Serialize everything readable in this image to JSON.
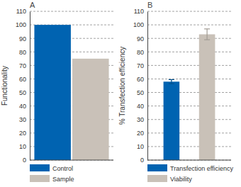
{
  "chart_data": [
    {
      "type": "bar",
      "title": "A",
      "ylabel": "Functionality",
      "categories": [
        null
      ],
      "series": [
        {
          "name": "Control",
          "color": "#0063b1",
          "values": [
            100
          ]
        },
        {
          "name": "Sample",
          "color": "#c9c1b8",
          "values": [
            75
          ]
        }
      ],
      "ylim": [
        0,
        110
      ],
      "yticks": [
        0,
        10,
        20,
        30,
        40,
        50,
        60,
        70,
        80,
        90,
        100,
        110
      ],
      "grid": true,
      "legend": "bottom"
    },
    {
      "type": "bar",
      "title": "B",
      "ylabel": "% Transfection efficiency",
      "categories": [
        null
      ],
      "series": [
        {
          "name": "Transfection efficiency",
          "color": "#0063b1",
          "values": [
            58
          ],
          "errors": [
            1.5
          ]
        },
        {
          "name": "Viability",
          "color": "#c9c1b8",
          "values": [
            93
          ],
          "errors": [
            4
          ]
        }
      ],
      "ylim": [
        0,
        110
      ],
      "yticks": [
        0,
        10,
        20,
        30,
        40,
        50,
        60,
        70,
        80,
        90,
        100,
        110
      ],
      "grid": true,
      "legend": "bottom"
    }
  ]
}
